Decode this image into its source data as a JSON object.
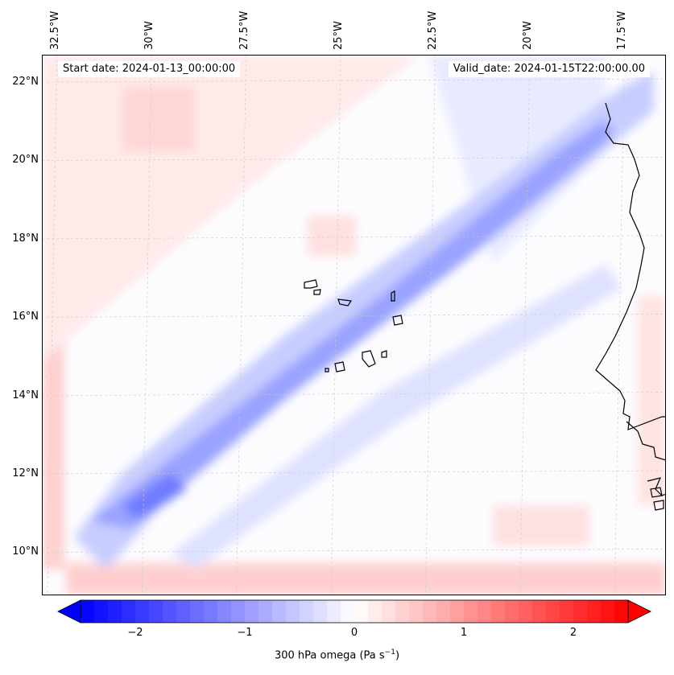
{
  "figure": {
    "start_date": "Start date: 2024-01-13_00:00:00",
    "valid_date": "Valid_date: 2024-01-15T22:00:00.00",
    "colorbar_label": "300 hPa omega (Pa s",
    "colorbar_label_sup": "−1",
    "colorbar_label_end": ")"
  },
  "chart_data": {
    "type": "heatmap",
    "title": "",
    "variable": "300 hPa omega (Pa s^-1)",
    "x_ticks": [
      "32.5°W",
      "30°W",
      "27.5°W",
      "25°W",
      "22.5°W",
      "20°W",
      "17.5°W"
    ],
    "x_tick_values": [
      -32.5,
      -30,
      -27.5,
      -25,
      -22.5,
      -20,
      -17.5
    ],
    "y_ticks": [
      "22°N",
      "20°N",
      "18°N",
      "16°N",
      "14°N",
      "12°N",
      "10°N"
    ],
    "y_tick_values": [
      22,
      20,
      18,
      16,
      14,
      12,
      10
    ],
    "lon_range": [
      -32.9,
      -16.4
    ],
    "lat_range": [
      8.9,
      22.7
    ],
    "colorbar_ticks": [
      "−2",
      "−1",
      "0",
      "1",
      "2"
    ],
    "colorbar_tick_values": [
      -2,
      -1,
      0,
      1,
      2
    ],
    "colorbar_range": [
      -2.5,
      2.5
    ],
    "colormap": "bwr",
    "colors": {
      "negative": "#0000ff",
      "zero": "#ffffff",
      "positive": "#ff0000",
      "coast": "#000000",
      "grid": "#cccccc"
    },
    "features": [
      {
        "name": "subsidence band along edges",
        "value": 0.5
      },
      {
        "name": "ascent band along wave track",
        "value": -0.9
      }
    ]
  }
}
